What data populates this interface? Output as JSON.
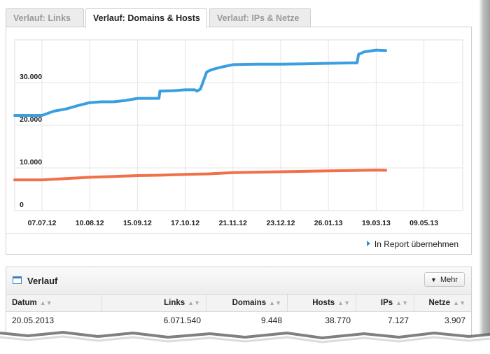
{
  "tabs": [
    {
      "label": "Verlauf: Links",
      "active": false
    },
    {
      "label": "Verlauf: Domains & Hosts",
      "active": true
    },
    {
      "label": "Verlauf: IPs & Netze",
      "active": false
    }
  ],
  "chart_data": {
    "type": "line",
    "x": [
      "07.07.12",
      "10.08.12",
      "15.09.12",
      "17.10.12",
      "21.11.12",
      "23.12.12",
      "26.01.13",
      "19.03.13",
      "09.05.13"
    ],
    "ylim": [
      0,
      40000
    ],
    "y_ticks": [
      "0",
      "10.000",
      "20.000",
      "30.000"
    ],
    "grid": true,
    "series": [
      {
        "color": "#3b9ee0",
        "points": [
          [
            0,
            22300
          ],
          [
            0.25,
            23300
          ],
          [
            0.5,
            23800
          ],
          [
            0.75,
            24600
          ],
          [
            1.0,
            25300
          ],
          [
            1.25,
            25500
          ],
          [
            1.5,
            25500
          ],
          [
            1.75,
            25800
          ],
          [
            2.0,
            26300
          ],
          [
            2.25,
            26300
          ],
          [
            2.45,
            26300
          ],
          [
            2.47,
            28000
          ],
          [
            2.75,
            28100
          ],
          [
            3.0,
            28300
          ],
          [
            3.2,
            28300
          ],
          [
            3.25,
            28000
          ],
          [
            3.32,
            28500
          ],
          [
            3.45,
            32500
          ],
          [
            3.55,
            33000
          ],
          [
            3.75,
            33600
          ],
          [
            4.0,
            34200
          ],
          [
            4.5,
            34300
          ],
          [
            5.0,
            34300
          ],
          [
            5.5,
            34400
          ],
          [
            6.0,
            34500
          ],
          [
            6.5,
            34600
          ],
          [
            6.6,
            34600
          ],
          [
            6.63,
            36600
          ],
          [
            6.75,
            37200
          ],
          [
            7.0,
            37600
          ],
          [
            7.2,
            37500
          ]
        ]
      },
      {
        "color": "#f0704a",
        "points": [
          [
            0,
            7200
          ],
          [
            0.5,
            7500
          ],
          [
            1.0,
            7800
          ],
          [
            1.5,
            8000
          ],
          [
            2.0,
            8200
          ],
          [
            2.5,
            8300
          ],
          [
            3.0,
            8500
          ],
          [
            3.5,
            8600
          ],
          [
            4.0,
            8900
          ],
          [
            4.5,
            9000
          ],
          [
            5.0,
            9100
          ],
          [
            5.5,
            9200
          ],
          [
            6.0,
            9300
          ],
          [
            6.5,
            9400
          ],
          [
            7.0,
            9500
          ],
          [
            7.2,
            9450
          ]
        ]
      }
    ]
  },
  "report_link": "In Report übernehmen",
  "table": {
    "title": "Verlauf",
    "mehr_label": "Mehr",
    "columns": [
      "Datum",
      "Links",
      "Domains",
      "Hosts",
      "IPs",
      "Netze"
    ],
    "rows": [
      [
        "20.05.2013",
        "6.071.540",
        "9.448",
        "38.770",
        "7.127",
        "3.907"
      ]
    ]
  }
}
